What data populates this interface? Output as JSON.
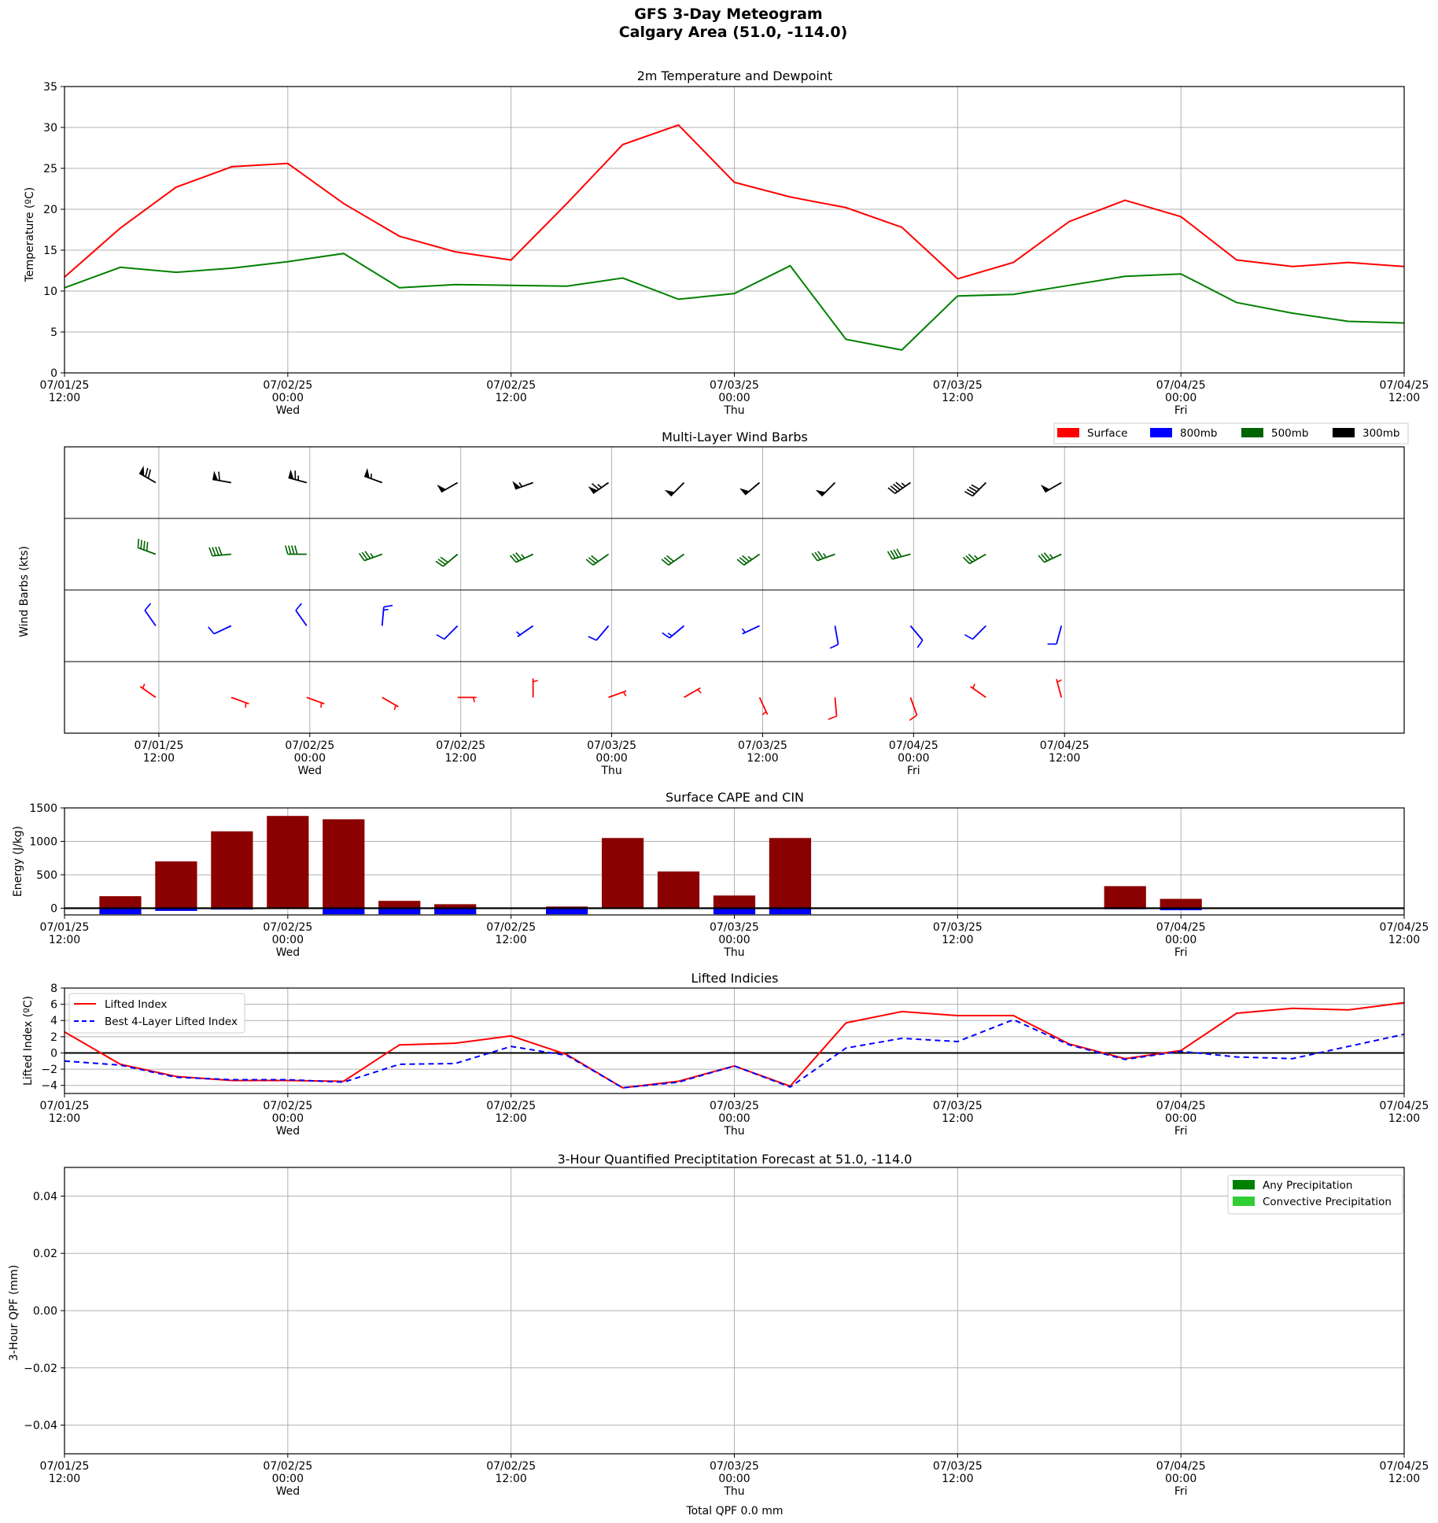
{
  "figure": {
    "title": "GFS 3-Day Meteogram",
    "subtitle": "Calgary Area (51.0, -114.0)"
  },
  "colors": {
    "temperature": "#ff0000",
    "dewpoint": "#008000",
    "cape": "#8b0000",
    "cin": "#0000ff",
    "lifted_index": "#ff0000",
    "best_lifted_index": "#0000ff",
    "any_precip": "#008000",
    "convective_precip": "#32cd32",
    "grid": "#b0b0b0"
  },
  "time_axis": {
    "ticks": [
      {
        "date": "07/01/25",
        "time": "12:00",
        "day": ""
      },
      {
        "date": "07/02/25",
        "time": "00:00",
        "day": "Wed"
      },
      {
        "date": "07/02/25",
        "time": "12:00",
        "day": ""
      },
      {
        "date": "07/03/25",
        "time": "00:00",
        "day": "Thu"
      },
      {
        "date": "07/03/25",
        "time": "12:00",
        "day": ""
      },
      {
        "date": "07/04/25",
        "time": "00:00",
        "day": "Fri"
      },
      {
        "date": "07/04/25",
        "time": "12:00",
        "day": ""
      }
    ]
  },
  "chart_data": [
    {
      "type": "line",
      "title": "2m Temperature and Dewpoint",
      "ylabel": "Temperature (ºC)",
      "xlabel": "",
      "x_unit": "hours after 07/01/25 12:00",
      "x": [
        0,
        3,
        6,
        9,
        12,
        15,
        18,
        21,
        24,
        27,
        30,
        33,
        36,
        39,
        42,
        45,
        48,
        51,
        54,
        57,
        60,
        63,
        66,
        69,
        72
      ],
      "xlim": [
        0,
        72
      ],
      "ylim": [
        0,
        35
      ],
      "yticks": [
        0,
        5,
        10,
        15,
        20,
        25,
        30,
        35
      ],
      "grid": true,
      "series": [
        {
          "key": "temperature",
          "values": [
            11.7,
            17.7,
            22.7,
            25.2,
            25.6,
            20.7,
            16.7,
            14.8,
            13.8,
            20.7,
            27.9,
            30.3,
            23.3,
            21.5,
            20.2,
            17.8,
            11.5,
            13.5,
            18.5,
            21.1,
            19.1,
            13.8,
            13.0,
            13.5,
            13.0
          ]
        },
        {
          "key": "dewpoint",
          "values": [
            10.4,
            12.9,
            12.3,
            12.8,
            13.6,
            14.6,
            10.4,
            10.8,
            10.7,
            10.6,
            11.6,
            9.0,
            9.7,
            13.1,
            4.1,
            2.8,
            9.4,
            9.6,
            10.7,
            11.8,
            12.1,
            8.6,
            7.3,
            6.3,
            6.1
          ]
        }
      ]
    },
    {
      "type": "barbs",
      "title": "Multi-Layer Wind Barbs",
      "ylabel": "Wind Barbs (kts)",
      "x_unit": "hours after 07/01/25 12:00",
      "xlim": [
        -7.5,
        99
      ],
      "xticks": [
        0,
        12,
        24,
        36,
        48,
        60,
        72
      ],
      "legend": {
        "position": "top-right",
        "entries": [
          "Surface",
          "800mb",
          "500mb",
          "300mb"
        ]
      },
      "times": [
        0,
        6,
        12,
        18,
        24,
        30,
        36,
        42,
        48,
        54,
        60,
        66,
        72
      ],
      "levels": [
        {
          "name": "300mb",
          "color": "#000000",
          "dir": [
            300,
            280,
            285,
            290,
            240,
            250,
            235,
            225,
            230,
            225,
            235,
            225,
            240
          ],
          "speed": [
            70,
            60,
            65,
            55,
            50,
            55,
            65,
            50,
            50,
            50,
            45,
            40,
            50
          ]
        },
        {
          "name": "500mb",
          "color": "#006400",
          "dir": [
            290,
            265,
            270,
            250,
            230,
            245,
            235,
            235,
            235,
            250,
            255,
            240,
            245
          ],
          "speed": [
            40,
            40,
            40,
            35,
            30,
            35,
            30,
            30,
            35,
            35,
            40,
            35,
            35
          ]
        },
        {
          "name": "800mb",
          "color": "#0000ff",
          "dir": [
            325,
            245,
            325,
            5,
            225,
            235,
            220,
            230,
            245,
            170,
            140,
            225,
            195
          ],
          "speed": [
            10,
            10,
            10,
            15,
            10,
            5,
            10,
            15,
            5,
            10,
            10,
            10,
            10
          ]
        },
        {
          "name": "Surface",
          "color": "#ff0000",
          "dir": [
            305,
            110,
            110,
            120,
            90,
            0,
            70,
            60,
            155,
            175,
            160,
            305,
            345
          ],
          "speed": [
            5,
            5,
            5,
            5,
            5,
            5,
            5,
            5,
            5,
            10,
            10,
            5,
            5
          ]
        }
      ]
    },
    {
      "type": "bar",
      "title": "Surface CAPE and CIN",
      "ylabel": "Energy (J/kg)",
      "x_unit": "hours after 07/01/25 12:00",
      "x": [
        3,
        6,
        9,
        12,
        15,
        18,
        21,
        24,
        27,
        30,
        33,
        36,
        39,
        42,
        45,
        48,
        51,
        54,
        57,
        60,
        63,
        66,
        69
      ],
      "xlim": [
        0,
        72
      ],
      "ylim": [
        -100,
        1500
      ],
      "yticks": [
        0,
        500,
        1000,
        1500
      ],
      "grid": true,
      "series": [
        {
          "key": "cape",
          "values": [
            180,
            700,
            1150,
            1380,
            1330,
            110,
            60,
            0,
            25,
            1050,
            550,
            190,
            1050,
            0,
            0,
            0,
            0,
            0,
            330,
            140,
            0,
            0,
            0
          ]
        },
        {
          "key": "cin",
          "values": [
            -90,
            -40,
            -20,
            -10,
            -90,
            -90,
            -90,
            0,
            -90,
            0,
            0,
            -90,
            -90,
            0,
            0,
            0,
            0,
            0,
            -15,
            -30,
            0,
            0,
            0
          ]
        }
      ]
    },
    {
      "type": "line",
      "title": "Lifted Indicies",
      "ylabel": "Lifted Index (ºC)",
      "x_unit": "hours after 07/01/25 12:00",
      "x": [
        0,
        3,
        6,
        9,
        12,
        15,
        18,
        21,
        24,
        27,
        30,
        33,
        36,
        39,
        42,
        45,
        48,
        51,
        54,
        57,
        60,
        63,
        66,
        69,
        72
      ],
      "xlim": [
        0,
        72
      ],
      "ylim": [
        -5,
        8
      ],
      "yticks": [
        -4,
        -2,
        0,
        2,
        4,
        6,
        8
      ],
      "grid": true,
      "legend": {
        "position": "top-left"
      },
      "series": [
        {
          "key": "lifted_index",
          "name": "Lifted Index",
          "values": [
            2.6,
            -1.4,
            -2.9,
            -3.4,
            -3.4,
            -3.5,
            1.0,
            1.2,
            2.1,
            -0.2,
            -4.3,
            -3.5,
            -1.6,
            -4.1,
            3.7,
            5.1,
            4.6,
            4.6,
            1.1,
            -0.7,
            0.3,
            4.9,
            5.5,
            5.3,
            6.2
          ]
        },
        {
          "key": "best_lifted_index",
          "name": "Best 4-Layer Lifted Index",
          "values": [
            -1.0,
            -1.5,
            -3.0,
            -3.3,
            -3.3,
            -3.6,
            -1.4,
            -1.3,
            0.8,
            -0.3,
            -4.3,
            -3.6,
            -1.6,
            -4.2,
            0.6,
            1.8,
            1.4,
            4.1,
            1.0,
            -0.8,
            0.2,
            -0.5,
            -0.7,
            0.8,
            2.3
          ]
        }
      ]
    },
    {
      "type": "bar",
      "title": "3-Hour Quantified Preciptitation Forecast at 51.0, -114.0",
      "ylabel": "3-Hour QPF (mm)",
      "xlabel": "Total QPF 0.0 mm",
      "x_unit": "hours after 07/01/25 12:00",
      "xlim": [
        0,
        72
      ],
      "ylim": [
        -0.05,
        0.05
      ],
      "yticks": [
        -0.04,
        -0.02,
        0.0,
        0.02,
        0.04
      ],
      "grid": true,
      "legend": {
        "position": "top-right"
      },
      "series": [
        {
          "key": "any_precip",
          "name": "Any Precipitation",
          "values": []
        },
        {
          "key": "convective_precip",
          "name": "Convective Precipitation",
          "values": []
        }
      ]
    }
  ]
}
